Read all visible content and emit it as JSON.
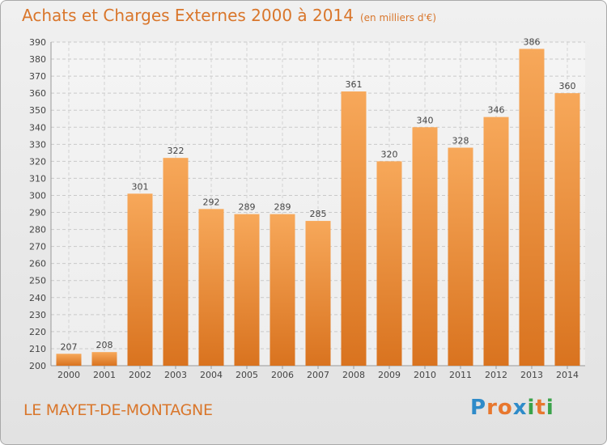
{
  "title": "Achats et Charges Externes 2000 à 2014",
  "unit": "(en milliers d'€)",
  "commune": "LE MAYET-DE-MONTAGNE",
  "logo": {
    "text": "Proxiti",
    "colors": [
      "#2e8bc9",
      "#e8772e",
      "#e8772e",
      "#2e8bc9",
      "#3aa34a",
      "#e8772e",
      "#3aa34a"
    ]
  },
  "colors": {
    "bar_top": "#f7a85a",
    "bar_bottom": "#d9731f",
    "accent": "#d9762b"
  },
  "chart_data": {
    "type": "bar",
    "categories": [
      "2000",
      "2001",
      "2002",
      "2003",
      "2004",
      "2005",
      "2006",
      "2007",
      "2008",
      "2009",
      "2010",
      "2011",
      "2012",
      "2013",
      "2014"
    ],
    "values": [
      207,
      208,
      301,
      322,
      292,
      289,
      289,
      285,
      361,
      320,
      340,
      328,
      346,
      386,
      360
    ],
    "ylim": [
      200,
      390
    ],
    "yticks": [
      200,
      210,
      220,
      230,
      240,
      250,
      260,
      270,
      280,
      290,
      300,
      310,
      320,
      330,
      340,
      350,
      360,
      370,
      380,
      390
    ],
    "grid": true
  }
}
